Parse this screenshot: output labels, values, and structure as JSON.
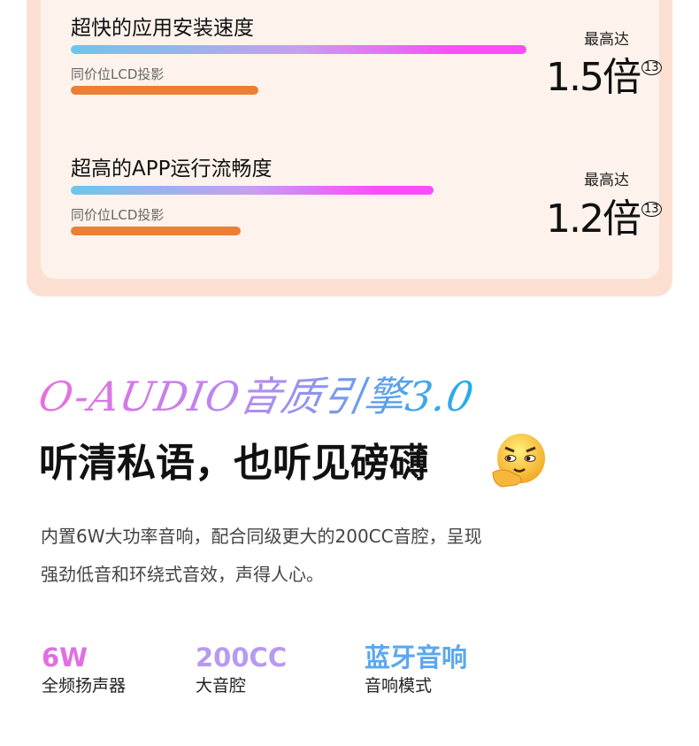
{
  "comparisons": [
    {
      "title": "超快的应用安装速度",
      "baseline_label": "同价位LCD投影",
      "progress": 1.0,
      "baseline_progress": 0.41,
      "max_label": "最高达",
      "value": "1.5倍",
      "footnote": "13"
    },
    {
      "title": "超高的APP运行流畅度",
      "baseline_label": "同价位LCD投影",
      "progress": 0.8,
      "baseline_progress": 0.37,
      "max_label": "最高达",
      "value": "1.2倍",
      "footnote": "13"
    }
  ],
  "audio": {
    "script_title": "O-AUDIO音质引擎3.0",
    "headline": "听清私语，也听见磅礴",
    "emoji": "smirk-face-emoji",
    "paragraph": [
      "内置6W大功率音响，配合同级更大的200CC音腔，呈现",
      "强劲低音和环绕式音效，声得人心。"
    ],
    "stats": [
      {
        "value": "6W",
        "label": "全频扬声器",
        "color": "#e070e0"
      },
      {
        "value": "200CC",
        "label": "大音腔",
        "color": "#b89af0"
      },
      {
        "value": "蓝牙音响",
        "label": "音响模式",
        "color": "#5aa8f0"
      }
    ]
  },
  "colors": {
    "card_outer": "#fbe0d2",
    "card_inner": "#fdf3ec",
    "orange_bar": "#ec7f35"
  }
}
